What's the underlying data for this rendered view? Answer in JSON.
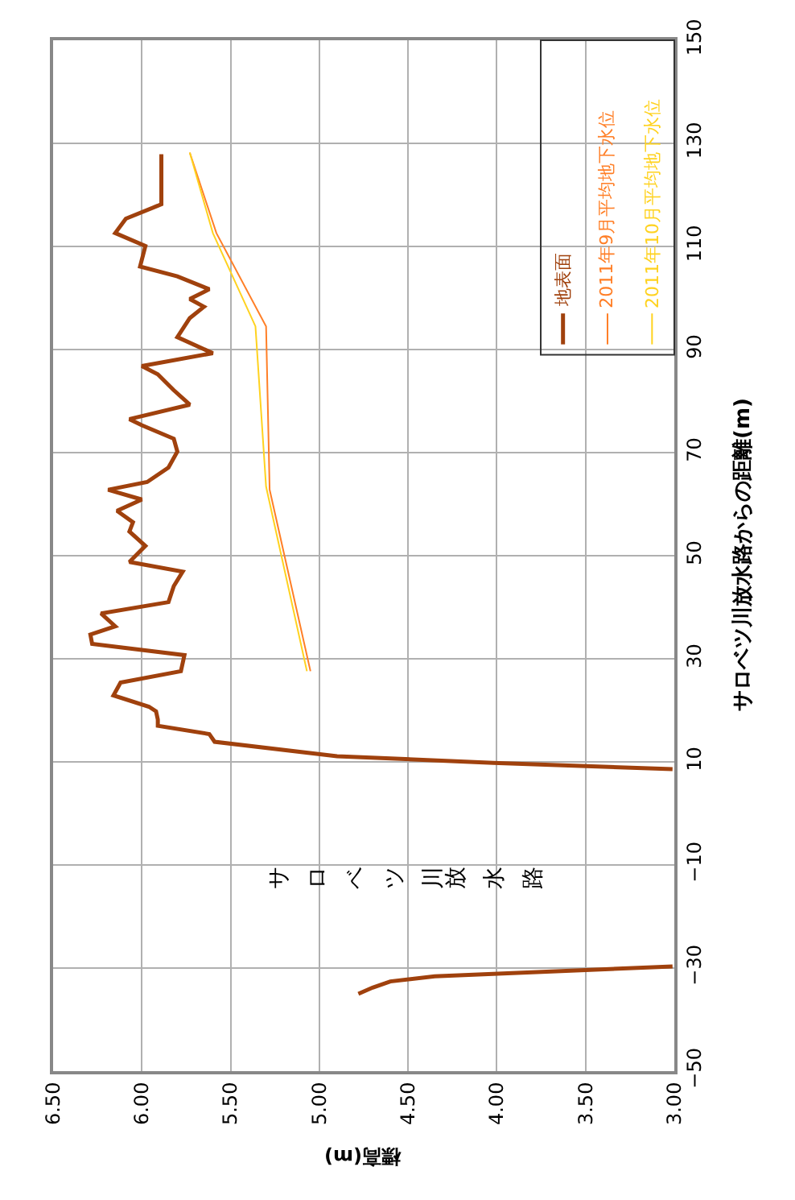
{
  "chart_data": {
    "type": "line",
    "xlabel": "標高(m)",
    "ylabel": "サロベツ川放水路からの距離(m)",
    "ylim": [
      -50,
      150
    ],
    "yticks": [
      {
        "value": -50,
        "label": "−50"
      },
      {
        "value": -30,
        "label": "−30"
      },
      {
        "value": -10,
        "label": "−10"
      },
      10,
      30,
      50,
      70,
      90,
      110,
      130,
      150
    ],
    "xlim": [
      6.5,
      3.0
    ],
    "xticks": [
      {
        "value": 6.5,
        "label": "6.50"
      },
      {
        "value": 6.0,
        "label": "6.00"
      },
      {
        "value": 5.5,
        "label": "5.50"
      },
      {
        "value": 5.0,
        "label": "5.00"
      },
      {
        "value": 4.5,
        "label": "4.50"
      },
      {
        "value": 4.0,
        "label": "4.00"
      },
      {
        "value": 3.5,
        "label": "3.50"
      },
      {
        "value": 3.0,
        "label": "3.00"
      }
    ],
    "grid": true,
    "legend": "top right",
    "marker": "none",
    "line_style": "solid",
    "annotations": [
      "サロベツ川放水路"
    ],
    "series": [
      {
        "name": "地表面",
        "color": "#a0410d",
        "values": [
          -35.0,
          -33.8,
          -32.6,
          -31.6,
          -29.7,
          null,
          8.6,
          9.8,
          11.1,
          13.9,
          15.4,
          17.0,
          18.2,
          19.8,
          20.7,
          22.9,
          25.4,
          27.6,
          30.7,
          32.9,
          34.7,
          36.3,
          38.8,
          41.0,
          44.1,
          46.9,
          48.8,
          51.9,
          54.7,
          56.5,
          58.7,
          60.9,
          62.8,
          64.3,
          67.1,
          70.2,
          72.7,
          75.3,
          76.5,
          79.3,
          82.1,
          85.2,
          86.8,
          89.3,
          92.4,
          96.1,
          98.3,
          99.8,
          101.7,
          104.2,
          106.1,
          110.1,
          112.6,
          115.4,
          117.9,
          118.2,
          127.9
        ],
        "x": [
          4.78,
          4.7,
          4.6,
          4.35,
          3.01,
          null,
          3.01,
          4.02,
          4.9,
          5.59,
          5.62,
          5.91,
          5.91,
          5.92,
          5.96,
          6.16,
          6.12,
          5.78,
          5.76,
          6.28,
          6.29,
          6.15,
          6.23,
          5.85,
          5.82,
          5.77,
          6.07,
          5.98,
          6.07,
          6.05,
          6.14,
          6.0,
          6.19,
          5.97,
          5.85,
          5.8,
          5.82,
          6.0,
          6.07,
          5.73,
          5.82,
          5.91,
          6.0,
          5.6,
          5.8,
          5.73,
          5.65,
          5.73,
          5.62,
          5.8,
          6.01,
          5.98,
          6.15,
          6.09,
          5.91,
          5.89,
          5.89
        ]
      },
      {
        "name": "2011年9月平均地下水位",
        "color": "#ff7f27",
        "values": [
          27.6,
          62.8,
          94.5,
          112.6,
          128.2
        ],
        "x": [
          5.05,
          5.28,
          5.3,
          5.58,
          5.73
        ]
      },
      {
        "name": "2011年10月平均地下水位",
        "color": "#ffd21f",
        "values": [
          27.6,
          63.4,
          94.5,
          112.6,
          128.2
        ],
        "x": [
          5.07,
          5.3,
          5.36,
          5.6,
          5.73
        ]
      }
    ]
  }
}
